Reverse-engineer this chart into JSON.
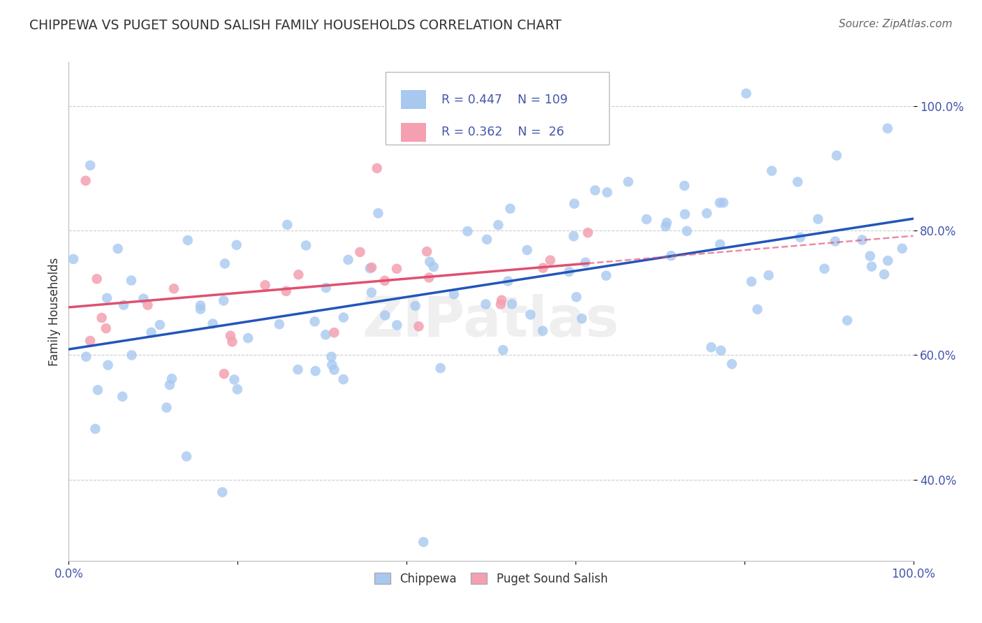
{
  "title": "CHIPPEWA VS PUGET SOUND SALISH FAMILY HOUSEHOLDS CORRELATION CHART",
  "source": "Source: ZipAtlas.com",
  "ylabel": "Family Households",
  "legend_chippewa": "Chippewa",
  "legend_puget": "Puget Sound Salish",
  "R_chippewa": 0.447,
  "N_chippewa": 109,
  "R_puget": 0.362,
  "N_puget": 26,
  "chippewa_color": "#A8C8F0",
  "puget_color": "#F4A0B0",
  "chippewa_line_color": "#2255BB",
  "puget_line_color": "#E05070",
  "background_color": "#FFFFFF",
  "grid_color": "#CCCCCC",
  "text_color": "#4455AA",
  "title_color": "#333333",
  "source_color": "#666666",
  "watermark_color": "#DDDDDD",
  "xlim": [
    0.0,
    1.0
  ],
  "ylim": [
    0.27,
    1.07
  ],
  "yticks": [
    0.4,
    0.6,
    0.8,
    1.0
  ],
  "ytick_labels": [
    "40.0%",
    "60.0%",
    "80.0%",
    "100.0%"
  ],
  "xticks": [
    0.0,
    0.2,
    0.4,
    0.6,
    0.8,
    1.0
  ],
  "xtick_labels": [
    "0.0%",
    "",
    "",
    "",
    "",
    "100.0%"
  ]
}
